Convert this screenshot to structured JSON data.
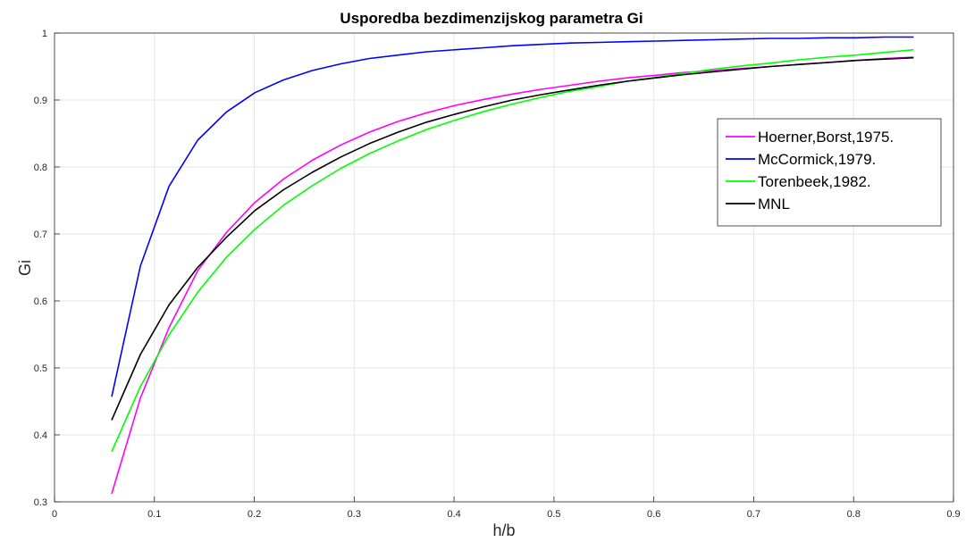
{
  "chart_data": {
    "type": "line",
    "title": "Usporedba bezdimenzijskog parametra Gi",
    "xlabel": "h/b",
    "ylabel": "Gi",
    "xlim": [
      0,
      0.9
    ],
    "ylim": [
      0.3,
      1
    ],
    "x_ticks": [
      "0",
      "0.1",
      "0.2",
      "0.3",
      "0.4",
      "0.5",
      "0.6",
      "0.7",
      "0.8",
      "0.9"
    ],
    "y_ticks": [
      "0.3",
      "0.4",
      "0.5",
      "0.6",
      "0.7",
      "0.8",
      "0.9",
      "1"
    ],
    "grid": true,
    "legend_position": "right",
    "x": [
      0.0573,
      0.086,
      0.1146,
      0.1433,
      0.172,
      0.2006,
      0.2293,
      0.258,
      0.2866,
      0.3153,
      0.344,
      0.3726,
      0.4013,
      0.43,
      0.4586,
      0.4873,
      0.516,
      0.5446,
      0.5733,
      0.602,
      0.6306,
      0.6593,
      0.688,
      0.7166,
      0.7453,
      0.774,
      0.8026,
      0.8313,
      0.86
    ],
    "series": [
      {
        "name": "Hoerner,Borst,1975.",
        "color": "#ff00ff",
        "values": [
          0.312,
          0.455,
          0.56,
          0.645,
          0.702,
          0.747,
          0.782,
          0.81,
          0.833,
          0.852,
          0.868,
          0.881,
          0.892,
          0.901,
          0.909,
          0.916,
          0.922,
          0.928,
          0.933,
          0.937,
          0.941,
          0.944,
          0.947,
          0.95,
          0.953,
          0.956,
          0.959,
          0.962,
          0.964
        ]
      },
      {
        "name": "McCormick,1979.",
        "color": "#0000ff",
        "values": [
          0.457,
          0.652,
          0.771,
          0.84,
          0.882,
          0.911,
          0.93,
          0.944,
          0.954,
          0.962,
          0.967,
          0.972,
          0.975,
          0.978,
          0.981,
          0.983,
          0.985,
          0.986,
          0.987,
          0.988,
          0.989,
          0.99,
          0.991,
          0.992,
          0.992,
          0.993,
          0.993,
          0.994,
          0.994
        ]
      },
      {
        "name": "Torenbeek,1982.",
        "color": "#00ff00",
        "values": [
          0.375,
          0.472,
          0.549,
          0.613,
          0.665,
          0.707,
          0.743,
          0.772,
          0.798,
          0.82,
          0.839,
          0.856,
          0.87,
          0.883,
          0.894,
          0.904,
          0.913,
          0.92,
          0.928,
          0.934,
          0.94,
          0.946,
          0.951,
          0.955,
          0.96,
          0.964,
          0.967,
          0.971,
          0.975
        ]
      },
      {
        "name": "MNL",
        "color": "#000000",
        "values": [
          0.422,
          0.52,
          0.594,
          0.65,
          0.695,
          0.735,
          0.766,
          0.792,
          0.815,
          0.835,
          0.852,
          0.867,
          0.879,
          0.89,
          0.9,
          0.908,
          0.915,
          0.922,
          0.928,
          0.933,
          0.938,
          0.942,
          0.946,
          0.95,
          0.953,
          0.956,
          0.959,
          0.961,
          0.963
        ]
      }
    ]
  }
}
